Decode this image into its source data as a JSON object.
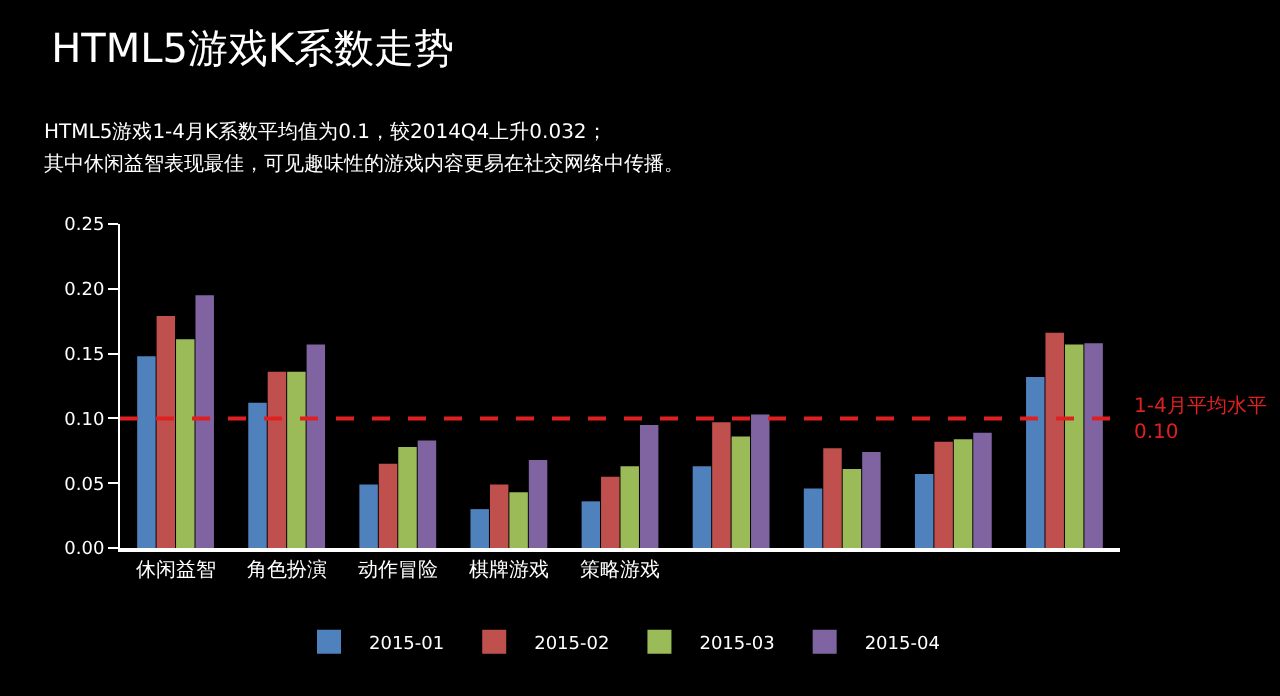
{
  "chart_data": {
    "type": "bar",
    "title": "HTML5游戏K系数走势",
    "subtitle": "HTML5游戏1-4月K系数平均值为0.1，较2014Q4上升0.032；",
    "annotations": [
      "其中休闲益智表现最佳，可见趣味性的游戏内容更易在社交网络中传播。"
    ],
    "categories": [
      "休闲益智",
      "角色扮演",
      "动作冒险",
      "棋牌游戏",
      "策略游戏",
      null,
      null,
      null,
      null
    ],
    "series": [
      {
        "name": "2015-01",
        "color": "#4f81bd",
        "values": [
          0.148,
          0.112,
          0.049,
          0.03,
          0.036,
          0.063,
          0.046,
          0.057,
          0.132
        ]
      },
      {
        "name": "2015-02",
        "color": "#c0504d",
        "values": [
          0.179,
          0.136,
          0.065,
          0.049,
          0.055,
          0.097,
          0.077,
          0.082,
          0.166
        ]
      },
      {
        "name": "2015-03",
        "color": "#9bbb59",
        "values": [
          0.161,
          0.136,
          0.078,
          0.043,
          0.063,
          0.086,
          0.061,
          0.084,
          0.157
        ]
      },
      {
        "name": "2015-04",
        "color": "#8064a2",
        "values": [
          0.195,
          0.157,
          0.083,
          0.068,
          0.095,
          0.103,
          0.074,
          0.089,
          0.158
        ]
      }
    ],
    "ylim": [
      0,
      0.25
    ],
    "yticks": [
      {
        "value": 0,
        "label": "0.00"
      },
      {
        "value": 0.05,
        "label": "0.05"
      },
      {
        "value": 0.1,
        "label": "0.10"
      },
      {
        "value": 0.15,
        "label": "0.15"
      },
      {
        "value": 0.2,
        "label": "0.20"
      },
      {
        "value": 0.25,
        "label": "0.25"
      }
    ],
    "ref_lines": [
      {
        "axis": "y",
        "value": 0.1,
        "label": "1-4月平均水平\n0.10",
        "color": "#e02020",
        "line_style": "dashed"
      }
    ],
    "grid": false,
    "legend": "bottom"
  }
}
